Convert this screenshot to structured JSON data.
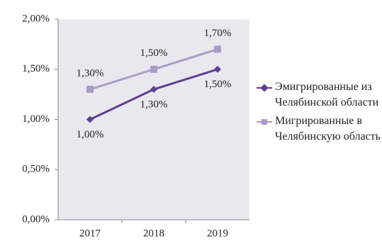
{
  "chart_data": {
    "type": "line",
    "categories": [
      "2017",
      "2018",
      "2019"
    ],
    "series": [
      {
        "name": "Эмигрированные из Челябинской области",
        "color": "#5e3f8f",
        "marker": "diamond",
        "label_position": "below",
        "values": [
          1.0,
          1.3,
          1.5
        ],
        "value_labels": [
          "1,00%",
          "1,30%",
          "1,50%"
        ]
      },
      {
        "name": "Мигрированные в Челябинскую область",
        "color": "#a99cc6",
        "marker": "square",
        "label_position": "above",
        "values": [
          1.3,
          1.5,
          1.7
        ],
        "value_labels": [
          "1,30%",
          "1,50%",
          "1,70%"
        ]
      }
    ],
    "ylim": [
      0,
      2
    ],
    "yticks": [
      {
        "value": 0,
        "label": "0,00%"
      },
      {
        "value": 0.5,
        "label": "0,50%"
      },
      {
        "value": 1,
        "label": "1,00%"
      },
      {
        "value": 1.5,
        "label": "1,50%"
      },
      {
        "value": 2,
        "label": "2,00%"
      }
    ],
    "grid": false,
    "legend": "right"
  }
}
